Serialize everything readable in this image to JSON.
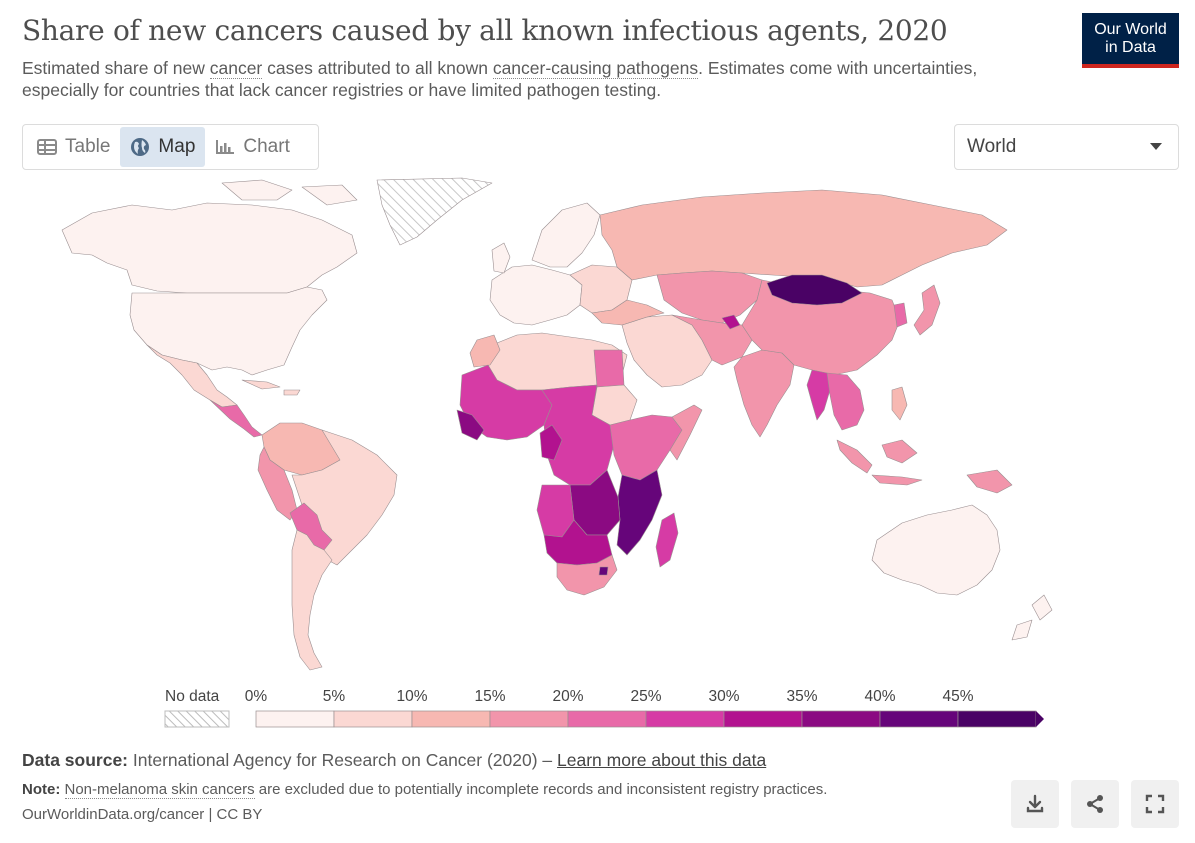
{
  "header": {
    "title": "Share of new cancers caused by all known infectious agents, 2020",
    "subtitle_parts": [
      "Estimated share of new ",
      "cancer",
      " cases attributed to all known ",
      "cancer-causing pathogens",
      ". Estimates come with uncertainties, especially for countries that lack cancer registries or have limited pathogen testing."
    ]
  },
  "logo": {
    "line1": "Our World",
    "line2": "in Data",
    "bg": "#002147",
    "accent": "#ce261e"
  },
  "tabs": [
    {
      "label": "Table",
      "icon": "table-icon",
      "active": false
    },
    {
      "label": "Map",
      "icon": "globe-icon",
      "active": true
    },
    {
      "label": "Chart",
      "icon": "chart-icon",
      "active": false
    }
  ],
  "region_select": {
    "value": "World"
  },
  "legend": {
    "no_data_label": "No data",
    "bins": [
      {
        "label": "0%",
        "color": "#fdf2f0"
      },
      {
        "label": "5%",
        "color": "#fbd8d3"
      },
      {
        "label": "10%",
        "color": "#f7b8b2"
      },
      {
        "label": "15%",
        "color": "#f295ab"
      },
      {
        "label": "20%",
        "color": "#e86aa8"
      },
      {
        "label": "25%",
        "color": "#d63ba5"
      },
      {
        "label": "30%",
        "color": "#b2128f"
      },
      {
        "label": "35%",
        "color": "#8b0a82"
      },
      {
        "label": "40%",
        "color": "#66057a"
      },
      {
        "label": "45%",
        "color": "#4a0265"
      }
    ]
  },
  "footer": {
    "source_label": "Data source:",
    "source_text": "International Agency for Research on Cancer (2020) – ",
    "source_link": "Learn more about this data",
    "note_label": "Note:",
    "note_link": "Non-melanoma skin cancers",
    "note_text": " are excluded due to potentially incomplete records and inconsistent registry practices.",
    "license": "OurWorldinData.org/cancer | CC BY"
  },
  "actions": [
    {
      "name": "download-button",
      "icon": "download-icon"
    },
    {
      "name": "share-button",
      "icon": "share-icon"
    },
    {
      "name": "fullscreen-button",
      "icon": "fullscreen-icon"
    }
  ]
}
